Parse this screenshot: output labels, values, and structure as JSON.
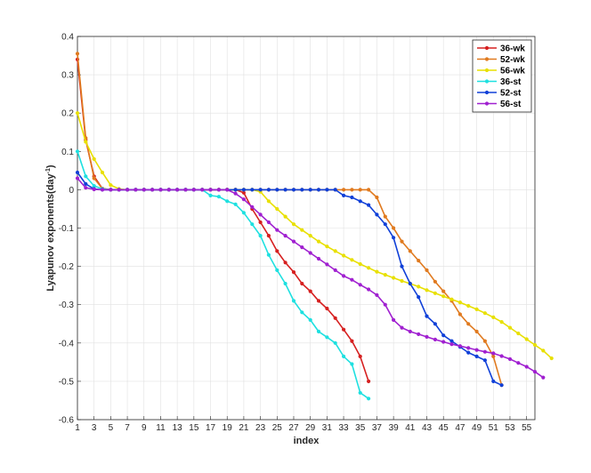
{
  "chart_data": {
    "type": "line",
    "title": "",
    "xlabel": "index",
    "ylabel_main": "Lyapunov exponents(day",
    "ylabel_sup": "-1",
    "ylabel_end": ")",
    "xlim": [
      1,
      56
    ],
    "ylim": [
      -0.6,
      0.4
    ],
    "xticks": [
      1,
      3,
      5,
      7,
      9,
      11,
      13,
      15,
      17,
      19,
      21,
      23,
      25,
      27,
      29,
      31,
      33,
      35,
      37,
      39,
      41,
      43,
      45,
      47,
      49,
      51,
      53,
      55
    ],
    "yticks": [
      -0.6,
      -0.5,
      -0.4,
      -0.3,
      -0.2,
      -0.1,
      0,
      0.1,
      0.2,
      0.3,
      0.4
    ],
    "ytick_labels": [
      "-0.6",
      "-0.5",
      "-0.4",
      "-0.3",
      "-0.2",
      "-0.1",
      "0",
      "0.1",
      "0.2",
      "0.3",
      "0.4"
    ],
    "grid": true,
    "legend_position": "top-right",
    "series": [
      {
        "name": "36-wk",
        "color": "#d62020",
        "y": [
          0.34,
          0.13,
          0.035,
          0.003,
          0,
          0,
          0,
          0,
          0,
          0,
          0,
          0,
          0,
          0,
          0,
          0,
          0,
          0,
          0,
          0,
          -0.008,
          -0.05,
          -0.085,
          -0.12,
          -0.16,
          -0.19,
          -0.215,
          -0.245,
          -0.265,
          -0.29,
          -0.31,
          -0.335,
          -0.365,
          -0.395,
          -0.435,
          -0.5
        ]
      },
      {
        "name": "52-wk",
        "color": "#e07a1f",
        "y": [
          0.355,
          0.135,
          0.03,
          0.003,
          0,
          0,
          0,
          0,
          0,
          0,
          0,
          0,
          0,
          0,
          0,
          0,
          0,
          0,
          0,
          0,
          0,
          0,
          0,
          0,
          0,
          0,
          0,
          0,
          0,
          0,
          0,
          0,
          0,
          0,
          0,
          0,
          -0.02,
          -0.07,
          -0.1,
          -0.135,
          -0.16,
          -0.185,
          -0.21,
          -0.24,
          -0.265,
          -0.29,
          -0.325,
          -0.35,
          -0.37,
          -0.395,
          -0.435,
          -0.51
        ]
      },
      {
        "name": "56-wk",
        "color": "#e8e000",
        "y": [
          0.2,
          0.125,
          0.08,
          0.045,
          0.012,
          0.002,
          0,
          0,
          0,
          0,
          0,
          0,
          0,
          0,
          0,
          0,
          0,
          0,
          0,
          0,
          0,
          0,
          -0.005,
          -0.03,
          -0.05,
          -0.07,
          -0.09,
          -0.105,
          -0.12,
          -0.135,
          -0.148,
          -0.16,
          -0.172,
          -0.183,
          -0.194,
          -0.204,
          -0.214,
          -0.222,
          -0.23,
          -0.238,
          -0.245,
          -0.253,
          -0.262,
          -0.27,
          -0.278,
          -0.286,
          -0.294,
          -0.303,
          -0.312,
          -0.322,
          -0.333,
          -0.345,
          -0.36,
          -0.375,
          -0.39,
          -0.405,
          -0.42,
          -0.44
        ]
      },
      {
        "name": "36-st",
        "color": "#1ee0e0",
        "y": [
          0.1,
          0.035,
          0.01,
          0.002,
          0,
          0,
          0,
          0,
          0,
          0,
          0,
          0,
          0,
          0,
          0,
          0,
          -0.015,
          -0.018,
          -0.03,
          -0.038,
          -0.06,
          -0.09,
          -0.12,
          -0.17,
          -0.21,
          -0.245,
          -0.29,
          -0.32,
          -0.34,
          -0.37,
          -0.385,
          -0.4,
          -0.435,
          -0.455,
          -0.53,
          -0.545
        ]
      },
      {
        "name": "52-st",
        "color": "#1040d8",
        "y": [
          0.045,
          0.015,
          0.002,
          0,
          0,
          0,
          0,
          0,
          0,
          0,
          0,
          0,
          0,
          0,
          0,
          0,
          0,
          0,
          0,
          0,
          0,
          0,
          0,
          0,
          0,
          0,
          0,
          0,
          0,
          0,
          0,
          0,
          -0.015,
          -0.02,
          -0.03,
          -0.04,
          -0.065,
          -0.09,
          -0.125,
          -0.2,
          -0.245,
          -0.28,
          -0.33,
          -0.35,
          -0.38,
          -0.395,
          -0.41,
          -0.425,
          -0.435,
          -0.445,
          -0.5,
          -0.51
        ]
      },
      {
        "name": "56-st",
        "color": "#a020d0",
        "y": [
          0.03,
          0.005,
          0.001,
          0,
          0,
          0,
          0,
          0,
          0,
          0,
          0,
          0,
          0,
          0,
          0,
          0,
          0,
          0,
          0,
          -0.01,
          -0.025,
          -0.045,
          -0.065,
          -0.085,
          -0.105,
          -0.12,
          -0.135,
          -0.15,
          -0.165,
          -0.18,
          -0.195,
          -0.21,
          -0.225,
          -0.235,
          -0.248,
          -0.26,
          -0.275,
          -0.3,
          -0.34,
          -0.36,
          -0.37,
          -0.377,
          -0.384,
          -0.391,
          -0.397,
          -0.403,
          -0.408,
          -0.413,
          -0.418,
          -0.423,
          -0.427,
          -0.434,
          -0.442,
          -0.452,
          -0.462,
          -0.475,
          -0.49
        ]
      }
    ]
  }
}
